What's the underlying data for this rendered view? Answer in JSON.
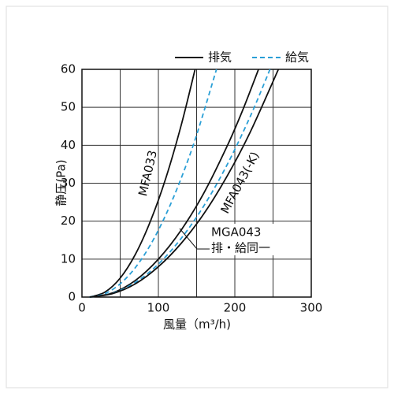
{
  "chart_data": {
    "type": "line",
    "xlabel": "風量（m³/h)",
    "ylabel": "静圧(Pa)",
    "xlim": [
      0,
      300
    ],
    "xticks": [
      0,
      100,
      200,
      300
    ],
    "x_minor_ticks": [
      50,
      150,
      250
    ],
    "ylim": [
      0,
      60
    ],
    "yticks": [
      0,
      10,
      20,
      30,
      40,
      50,
      60
    ],
    "grid": true,
    "legend": "top-right",
    "legend_entries": [
      {
        "name": "排気",
        "color": "#111111",
        "dash": false
      },
      {
        "name": "給気",
        "color": "#2a9fd6",
        "dash": true
      }
    ],
    "annotations": [
      "MFA033",
      "MFA043(-K)",
      "MGA043",
      "排・給同一"
    ],
    "series": [
      {
        "color": "#111111",
        "dash": false,
        "x": [
          10,
          30,
          50,
          70,
          90,
          110,
          130,
          148
        ],
        "values": [
          0,
          1.3,
          5,
          11.3,
          20.2,
          31.5,
          45.4,
          60
        ]
      },
      {
        "color": "#2a9fd6",
        "dash": true,
        "x": [
          10,
          30,
          50,
          70,
          90,
          110,
          130,
          150,
          176
        ],
        "values": [
          0,
          0.9,
          3.5,
          7.8,
          13.9,
          21.8,
          31.4,
          42.7,
          60
        ]
      },
      {
        "color": "#111111",
        "dash": false,
        "x": [
          10,
          40,
          70,
          100,
          130,
          160,
          190,
          210,
          231
        ],
        "values": [
          0,
          1.1,
          4.4,
          10,
          17.7,
          27.6,
          39.8,
          49.1,
          60
        ]
      },
      {
        "color": "#2a9fd6",
        "dash": true,
        "x": [
          10,
          40,
          70,
          100,
          130,
          160,
          190,
          220,
          246
        ],
        "values": [
          0,
          1,
          3.9,
          8.7,
          15.5,
          24.2,
          34.9,
          47.5,
          60
        ]
      },
      {
        "color": "#111111",
        "dash": false,
        "x": [
          10,
          40,
          70,
          100,
          130,
          160,
          190,
          220,
          257
        ],
        "values": [
          0,
          0.9,
          3.5,
          8,
          14.2,
          22.1,
          31.9,
          43.4,
          60
        ]
      }
    ]
  }
}
